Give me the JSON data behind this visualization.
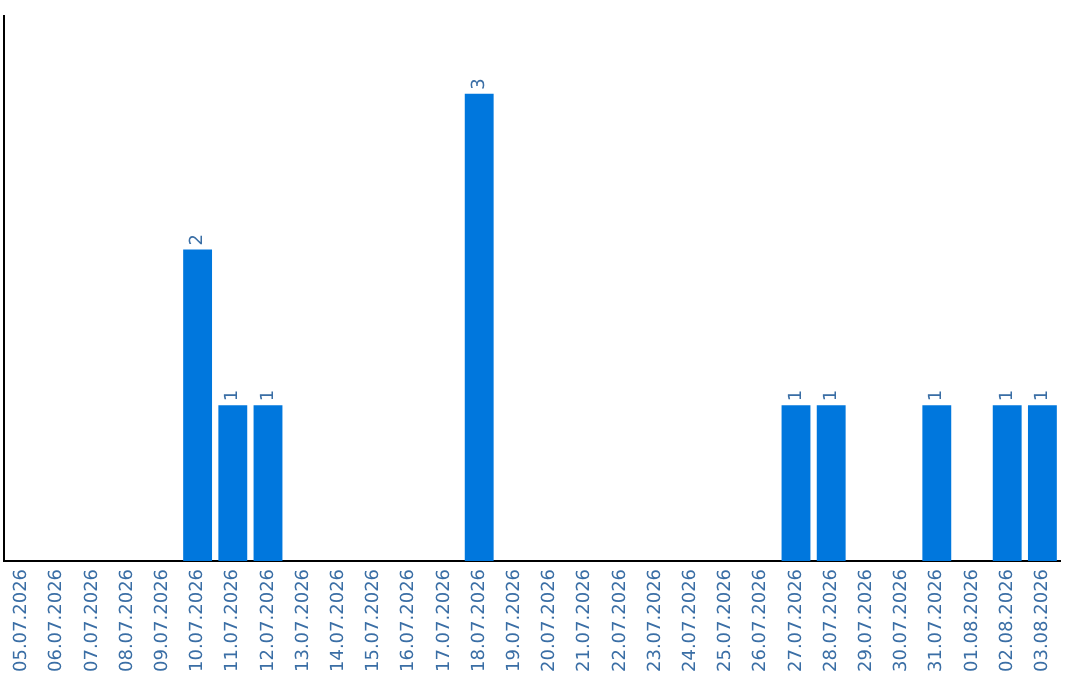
{
  "chart_data": {
    "type": "bar",
    "categories": [
      "05.07.2026",
      "06.07.2026",
      "07.07.2026",
      "08.07.2026",
      "09.07.2026",
      "10.07.2026",
      "11.07.2026",
      "12.07.2026",
      "13.07.2026",
      "14.07.2026",
      "15.07.2026",
      "16.07.2026",
      "17.07.2026",
      "18.07.2026",
      "19.07.2026",
      "20.07.2026",
      "21.07.2026",
      "22.07.2026",
      "23.07.2026",
      "24.07.2026",
      "25.07.2026",
      "26.07.2026",
      "27.07.2026",
      "28.07.2026",
      "29.07.2026",
      "30.07.2026",
      "31.07.2026",
      "01.08.2026",
      "02.08.2026",
      "03.08.2026"
    ],
    "values": [
      0,
      0,
      0,
      0,
      0,
      2,
      1,
      1,
      0,
      0,
      0,
      0,
      0,
      3,
      0,
      0,
      0,
      0,
      0,
      0,
      0,
      0,
      1,
      1,
      0,
      0,
      1,
      0,
      1,
      1
    ],
    "value_labels": [
      null,
      null,
      null,
      null,
      null,
      "2",
      "1",
      "1",
      null,
      null,
      null,
      null,
      null,
      "3",
      null,
      null,
      null,
      null,
      null,
      null,
      null,
      null,
      "1",
      "1",
      null,
      null,
      "1",
      null,
      "1",
      "1"
    ],
    "color": "#0077dd",
    "grid": false,
    "legend": false
  }
}
